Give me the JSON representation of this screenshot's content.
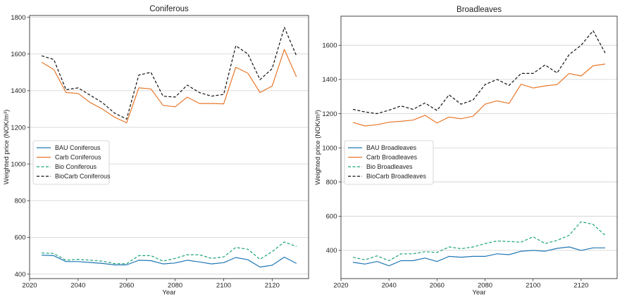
{
  "chart_data": [
    {
      "type": "line",
      "title": "Coniferous",
      "xlabel": "Year",
      "ylabel": "Weighted price (NOK/m³)",
      "xlim": [
        2020,
        2135
      ],
      "ylim": [
        375,
        1810
      ],
      "xticks": [
        2020,
        2040,
        2060,
        2080,
        2100,
        2120
      ],
      "yticks": [
        400,
        600,
        800,
        1000,
        1200,
        1400,
        1600,
        1800
      ],
      "grid": "horizontal",
      "legend": "center-left",
      "x": [
        2025,
        2030,
        2035,
        2040,
        2045,
        2050,
        2055,
        2060,
        2065,
        2070,
        2075,
        2080,
        2085,
        2090,
        2095,
        2100,
        2105,
        2110,
        2115,
        2120,
        2125,
        2130
      ],
      "series": [
        {
          "name": "BAU Coniferous",
          "color": "#1f77b4",
          "dash": "solid",
          "values": [
            503,
            500,
            468,
            468,
            463,
            458,
            450,
            450,
            475,
            473,
            455,
            460,
            475,
            466,
            455,
            462,
            490,
            478,
            438,
            448,
            492,
            458
          ]
        },
        {
          "name": "Carb Coniferous",
          "color": "#e8772a",
          "dash": "solid",
          "values": [
            1555,
            1515,
            1390,
            1385,
            1335,
            1300,
            1255,
            1225,
            1415,
            1410,
            1320,
            1312,
            1365,
            1330,
            1330,
            1328,
            1528,
            1495,
            1390,
            1425,
            1625,
            1475
          ]
        },
        {
          "name": "Bio Coniferous",
          "color": "#1aa37a",
          "dash": "dashed",
          "values": [
            515,
            512,
            475,
            480,
            475,
            470,
            457,
            456,
            500,
            500,
            470,
            485,
            505,
            505,
            485,
            493,
            545,
            535,
            480,
            522,
            575,
            550
          ]
        },
        {
          "name": "BioCarb Coniferous",
          "color": "#111111",
          "dash": "dashed",
          "values": [
            1590,
            1570,
            1405,
            1415,
            1375,
            1335,
            1278,
            1245,
            1485,
            1500,
            1370,
            1365,
            1430,
            1390,
            1370,
            1380,
            1645,
            1600,
            1460,
            1520,
            1745,
            1590
          ]
        }
      ]
    },
    {
      "type": "line",
      "title": "Broadleaves",
      "xlabel": "Year",
      "ylabel": "Weighted price (NOK/m³)",
      "xlim": [
        2020,
        2135
      ],
      "ylim": [
        235,
        1770
      ],
      "xticks": [
        2020,
        2040,
        2060,
        2080,
        2100,
        2120
      ],
      "yticks": [
        400,
        600,
        800,
        1000,
        1200,
        1400,
        1600
      ],
      "grid": "horizontal",
      "legend": "center-left",
      "x": [
        2025,
        2030,
        2035,
        2040,
        2045,
        2050,
        2055,
        2060,
        2065,
        2070,
        2075,
        2080,
        2085,
        2090,
        2095,
        2100,
        2105,
        2110,
        2115,
        2120,
        2125,
        2130
      ],
      "series": [
        {
          "name": "BAU Broadleaves",
          "color": "#1f77b4",
          "dash": "solid",
          "values": [
            330,
            320,
            335,
            310,
            340,
            340,
            355,
            335,
            365,
            360,
            365,
            365,
            380,
            375,
            395,
            400,
            395,
            412,
            420,
            400,
            415,
            415
          ]
        },
        {
          "name": "Carb Broadleaves",
          "color": "#e8772a",
          "dash": "solid",
          "values": [
            1148,
            1128,
            1135,
            1150,
            1155,
            1162,
            1190,
            1145,
            1180,
            1170,
            1185,
            1255,
            1275,
            1260,
            1372,
            1350,
            1362,
            1370,
            1435,
            1420,
            1480,
            1490
          ]
        },
        {
          "name": "Bio Broadleaves",
          "color": "#1aa37a",
          "dash": "dashed",
          "values": [
            360,
            345,
            368,
            340,
            380,
            380,
            392,
            388,
            420,
            410,
            420,
            440,
            455,
            452,
            448,
            480,
            440,
            458,
            488,
            568,
            552,
            488
          ]
        },
        {
          "name": "BioCarb Broadleaves",
          "color": "#111111",
          "dash": "dashed",
          "values": [
            1225,
            1210,
            1200,
            1220,
            1245,
            1225,
            1262,
            1218,
            1310,
            1255,
            1280,
            1370,
            1400,
            1365,
            1435,
            1435,
            1485,
            1438,
            1545,
            1600,
            1685,
            1555
          ]
        }
      ]
    }
  ]
}
